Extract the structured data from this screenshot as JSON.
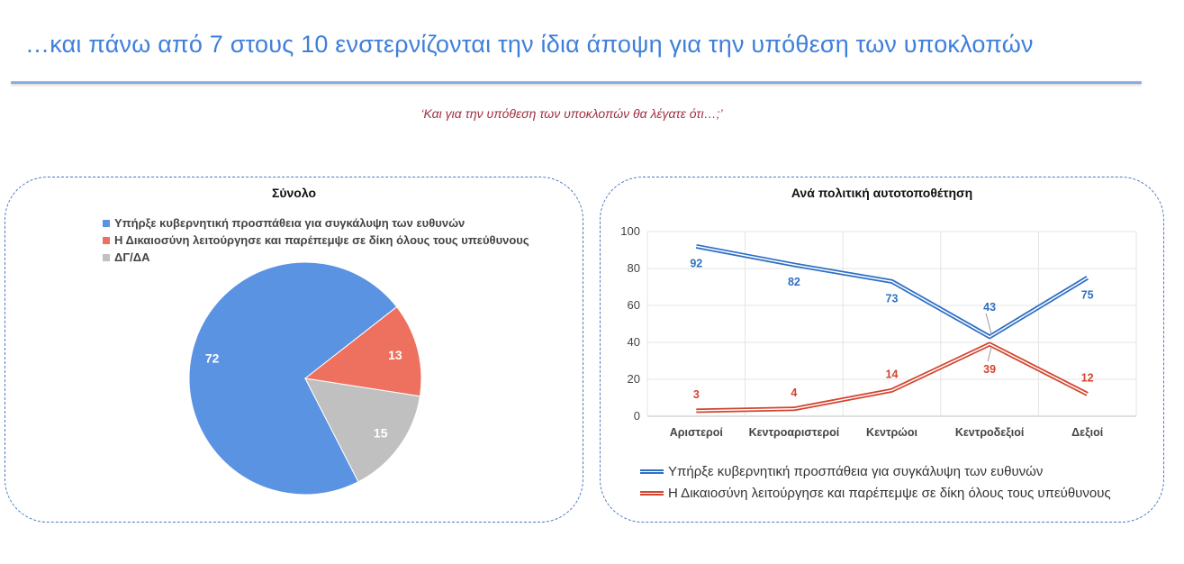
{
  "slide": {
    "title": "…και πάνω από 7 στους 10 ενστερνίζονται την ίδια άποψη για την υπόθεση των υποκλοπών",
    "subtitle": "‘Και για την υπόθεση των υποκλοπών θα λέγατε ότι…;’"
  },
  "colors": {
    "title": "#3f7fdc",
    "blue": "#5b93e3",
    "coral": "#ee705e",
    "gray": "#c0c0c0",
    "line_blue": "#2f6fc4",
    "line_red": "#d2452f"
  },
  "chart_data": [
    {
      "type": "pie",
      "title": "Σύνολο",
      "categories": [
        "Υπήρξε κυβερνητική προσπάθεια για συγκάλυψη των ευθυνών",
        "Η Δικαιοσύνη λειτούργησε και παρέπεμψε σε δίκη όλους τους υπεύθυνους",
        "ΔΓ/ΔΑ"
      ],
      "values": [
        72,
        13,
        15
      ],
      "colors": [
        "#5b93e3",
        "#ee705e",
        "#c0c0c0"
      ],
      "legend": "top-left"
    },
    {
      "type": "line",
      "title": "Ανά πολιτική αυτοτοποθέτηση",
      "categories": [
        "Αριστεροί",
        "Κεντροαριστεροί",
        "Κεντρώοι",
        "Κεντροδεξιοί",
        "Δεξιοί"
      ],
      "series": [
        {
          "name": "Υπήρξε κυβερνητική προσπάθεια για συγκάλυψη των ευθυνών",
          "values": [
            92,
            82,
            73,
            43,
            75
          ],
          "color": "#2f6fc4"
        },
        {
          "name": "Η Δικαιοσύνη λειτούργησε και παρέπεμψε σε δίκη όλους τους υπεύθυνους",
          "values": [
            3,
            4,
            14,
            39,
            12
          ],
          "color": "#d2452f"
        }
      ],
      "ylim": [
        0,
        100
      ],
      "yticks": [
        0,
        20,
        40,
        60,
        80,
        100
      ],
      "grid": true,
      "legend": "bottom"
    }
  ]
}
